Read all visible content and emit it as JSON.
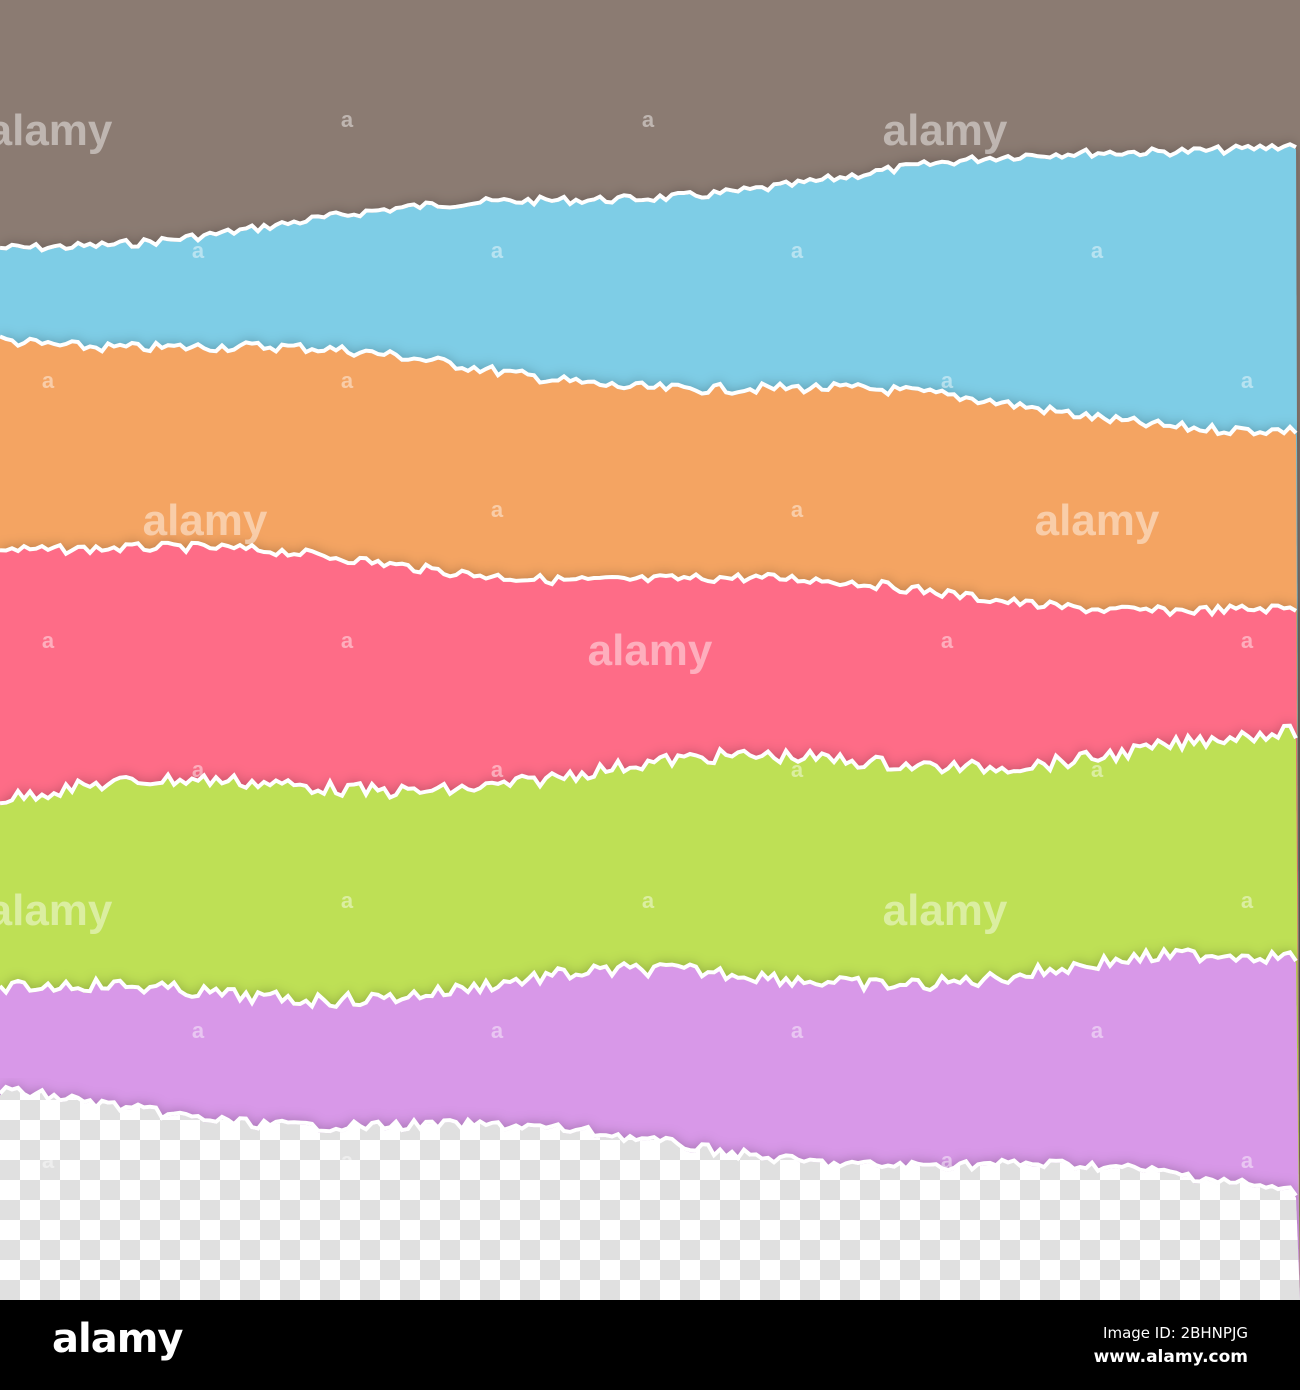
{
  "colors": {
    "background": "#8b7b72",
    "strips": [
      "#7ecde6",
      "#f4a462",
      "#fe6c87",
      "#bee055",
      "#d898e8"
    ],
    "edge": "#ffffff",
    "checker_light": "#ffffff",
    "checker_dark": "#e0e0e0"
  },
  "watermark": "alamy",
  "footer": {
    "logo": "alamy",
    "image_id": "Image ID: 2BHNPJG",
    "url": "www.alamy.com"
  }
}
